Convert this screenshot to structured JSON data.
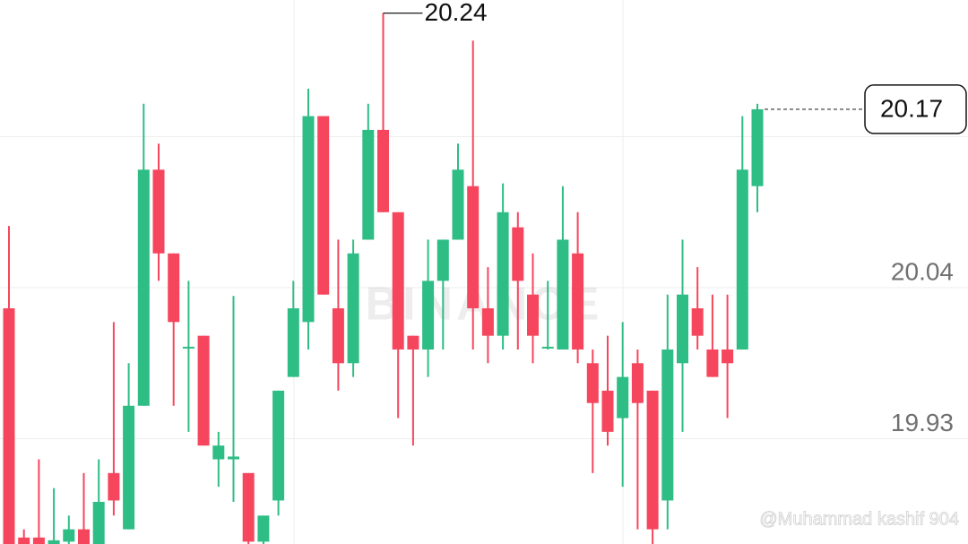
{
  "chart_data": {
    "type": "candlestick",
    "categories": [
      null,
      null,
      null,
      null,
      null,
      null,
      null,
      null,
      null,
      null,
      null,
      null,
      null,
      null,
      null,
      null,
      null,
      null,
      null,
      null,
      null,
      null,
      null,
      null,
      null,
      null,
      null,
      null,
      null,
      null,
      null,
      null,
      null,
      null,
      null,
      null,
      null,
      null,
      null,
      null,
      null,
      null,
      null,
      null,
      null,
      null,
      null,
      null,
      null,
      null,
      null
    ],
    "open": [
      20.025,
      19.858,
      19.858,
      19.853,
      19.855,
      19.864,
      19.853,
      19.905,
      19.864,
      19.954,
      20.126,
      20.065,
      19.996,
      20.005,
      19.915,
      19.915,
      19.905,
      19.855,
      19.885,
      19.975,
      20.015,
      20.165,
      20.025,
      19.985,
      20.075,
      20.155,
      20.095,
      20.005,
      19.995,
      20.045,
      20.075,
      20.114,
      20.025,
      20.005,
      20.084,
      20.035,
      19.996,
      19.995,
      20.065,
      19.985,
      19.965,
      19.945,
      19.985,
      19.965,
      19.885,
      19.985,
      20.025,
      19.995,
      19.995,
      19.995,
      20.114
    ],
    "high": [
      20.085,
      19.864,
      19.915,
      19.894,
      19.874,
      19.905,
      19.915,
      20.015,
      19.985,
      20.174,
      20.145,
      20.065,
      20.045,
      20.005,
      19.935,
      20.034,
      19.905,
      19.874,
      19.965,
      20.045,
      20.185,
      20.165,
      20.075,
      20.075,
      20.174,
      20.24,
      20.095,
      20.005,
      20.075,
      20.075,
      20.145,
      20.22,
      20.055,
      20.116,
      20.095,
      20.065,
      20.045,
      20.114,
      20.095,
      19.995,
      20.005,
      20.015,
      19.995,
      19.965,
      20.035,
      20.075,
      20.055,
      20.035,
      20.035,
      20.165,
      20.174
    ],
    "low": [
      19.85,
      19.85,
      19.85,
      19.85,
      19.853,
      19.85,
      19.85,
      19.874,
      19.864,
      19.954,
      20.045,
      19.954,
      19.935,
      19.925,
      19.895,
      19.884,
      19.853,
      19.853,
      19.874,
      19.975,
      19.995,
      20.035,
      19.965,
      19.975,
      20.075,
      20.095,
      19.945,
      19.925,
      19.975,
      19.995,
      20.075,
      19.995,
      19.985,
      19.995,
      19.995,
      19.985,
      19.995,
      19.995,
      19.985,
      19.905,
      19.925,
      19.895,
      19.864,
      19.853,
      19.864,
      19.935,
      19.995,
      19.975,
      19.945,
      19.995,
      20.095
    ],
    "close": [
      19.85,
      19.853,
      19.853,
      19.856,
      19.864,
      19.853,
      19.884,
      19.885,
      19.954,
      20.126,
      20.065,
      20.015,
      19.997,
      19.925,
      19.925,
      19.917,
      19.855,
      19.874,
      19.965,
      20.025,
      20.165,
      20.035,
      19.985,
      20.065,
      20.155,
      20.095,
      19.995,
      19.995,
      20.045,
      20.075,
      20.126,
      20.025,
      20.005,
      20.095,
      20.045,
      20.005,
      19.997,
      20.075,
      19.995,
      19.956,
      19.935,
      19.975,
      19.956,
      19.864,
      19.995,
      20.035,
      20.005,
      19.975,
      19.985,
      20.126,
      20.17
    ],
    "up_color": "#2ebd85",
    "down_color": "#f6465d",
    "ylim": [
      19.8533,
      20.2496
    ],
    "yticks": [
      19.93,
      20.04,
      20.15
    ],
    "grid": true
  },
  "watermark": {
    "logo": "BINANCE",
    "credit": "@Muhammad kashif 904"
  }
}
